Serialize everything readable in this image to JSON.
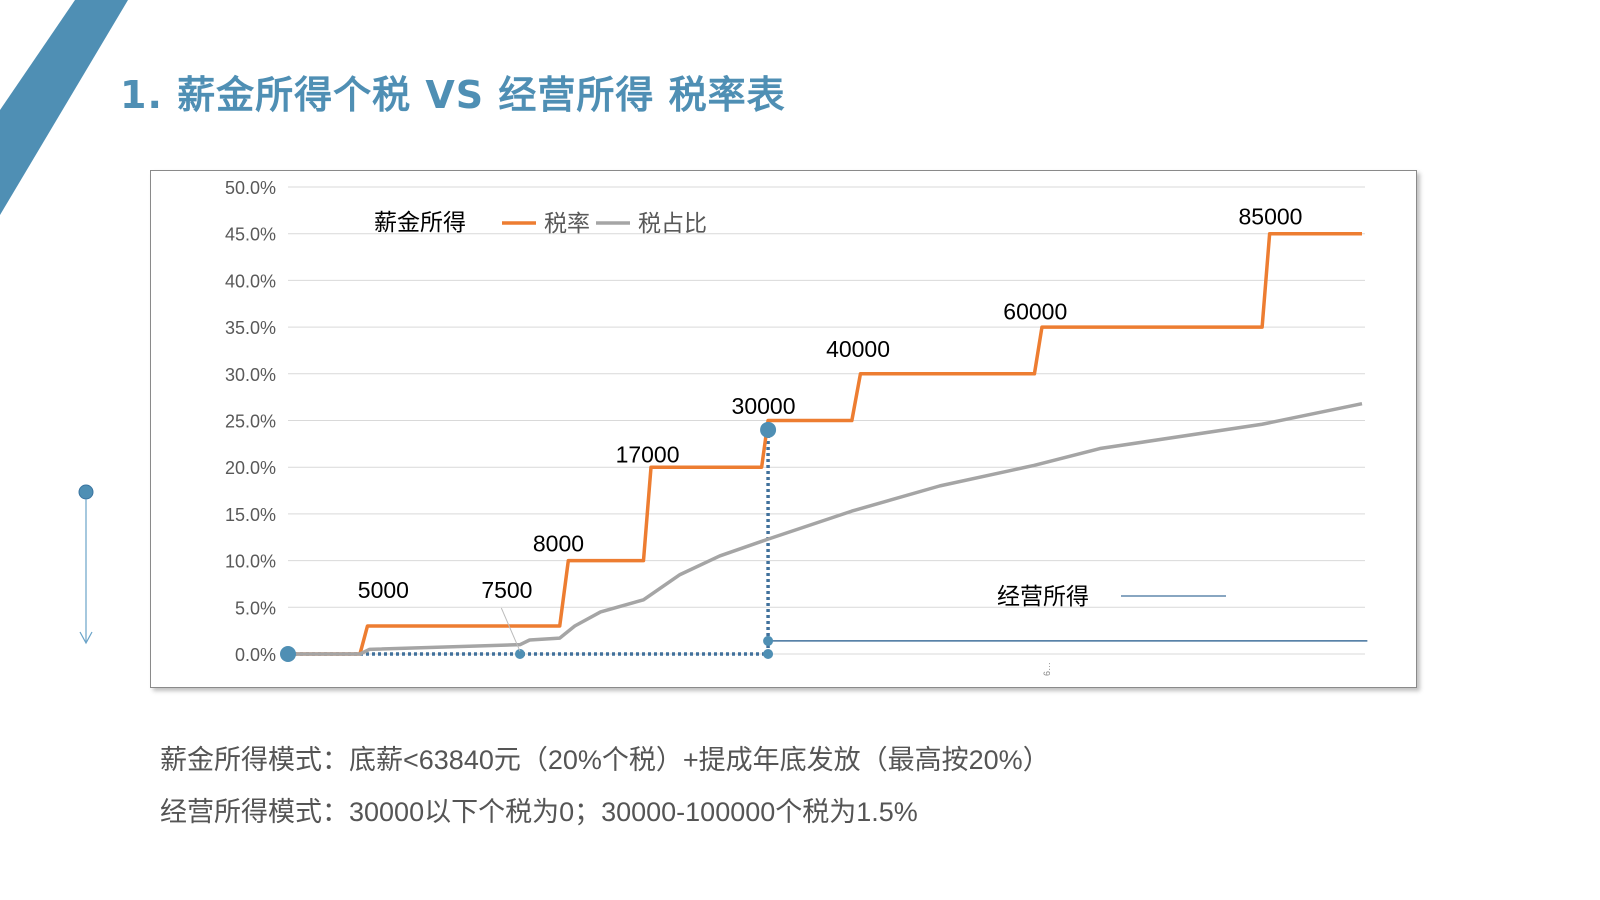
{
  "title": "1. 薪金所得个税 VS 经营所得 税率表",
  "notes": [
    "薪金所得模式：底薪<63840元（20%个税）+提成年底发放（最高按20%）",
    "经营所得模式：30000以下个税为0；30000-100000个税为1.5%"
  ],
  "colors": {
    "accent": "#4f8fb4",
    "tax_rate": "#ed7d31",
    "tax_ratio": "#a5a5a5",
    "business": "#41719c"
  },
  "chart_data": {
    "type": "line",
    "ylim": [
      0,
      50
    ],
    "xlim": [
      0,
      100
    ],
    "y_ticks": [
      "0.0%",
      "5.0%",
      "10.0%",
      "15.0%",
      "20.0%",
      "25.0%",
      "30.0%",
      "35.0%",
      "40.0%",
      "45.0%",
      "50.0%"
    ],
    "grid": true,
    "legend_title": "薪金所得",
    "legend_placement": "top-left",
    "x_tick_fragment": "6…",
    "series": [
      {
        "name": "税率",
        "color": "#ed7d31",
        "points": [
          [
            0,
            0
          ],
          [
            6.7,
            0
          ],
          [
            7.4,
            3
          ],
          [
            25.3,
            3
          ],
          [
            26.1,
            10
          ],
          [
            33.1,
            10
          ],
          [
            33.8,
            20
          ],
          [
            44.1,
            20
          ],
          [
            44.7,
            25
          ],
          [
            52.5,
            25
          ],
          [
            53.3,
            30
          ],
          [
            69.5,
            30
          ],
          [
            70.2,
            35
          ],
          [
            90.7,
            35
          ],
          [
            91.4,
            45
          ],
          [
            100,
            45
          ]
        ]
      },
      {
        "name": "税占比",
        "color": "#a5a5a5",
        "points": [
          [
            0,
            0
          ],
          [
            6.7,
            0
          ],
          [
            7.6,
            0.5
          ],
          [
            21.6,
            1
          ],
          [
            22.5,
            1.5
          ],
          [
            25.3,
            1.7
          ],
          [
            26.7,
            3
          ],
          [
            29.1,
            4.5
          ],
          [
            33.1,
            5.8
          ],
          [
            36.5,
            8.5
          ],
          [
            40.2,
            10.5
          ],
          [
            44.7,
            12.3
          ],
          [
            52.5,
            15.3
          ],
          [
            60.7,
            18
          ],
          [
            69.5,
            20.2
          ],
          [
            75.6,
            22
          ],
          [
            90.7,
            24.6
          ],
          [
            100,
            26.8
          ]
        ]
      },
      {
        "name": "经营所得",
        "color": "#41719c",
        "points": [
          [
            44.7,
            1.4
          ],
          [
            100.5,
            1.4
          ]
        ]
      }
    ],
    "guides": {
      "dotted": [
        [
          [
            0,
            0
          ],
          [
            44.7,
            0
          ]
        ],
        [
          [
            44.7,
            0
          ],
          [
            44.7,
            24
          ]
        ]
      ],
      "markers": [
        [
          0,
          0,
          "large"
        ],
        [
          21.6,
          0,
          "small"
        ],
        [
          44.7,
          0,
          "small"
        ],
        [
          44.7,
          1.4,
          "small"
        ],
        [
          44.7,
          24,
          "large"
        ]
      ]
    },
    "annotations": [
      {
        "text": "5000",
        "at": [
          6.5,
          6
        ]
      },
      {
        "text": "7500",
        "at": [
          18,
          6
        ],
        "leader_to": [
          21.6,
          0.3
        ]
      },
      {
        "text": "8000",
        "at": [
          22.8,
          11
        ]
      },
      {
        "text": "17000",
        "at": [
          30.5,
          20.5
        ]
      },
      {
        "text": "30000",
        "at": [
          41.3,
          25.7
        ]
      },
      {
        "text": "40000",
        "at": [
          50.1,
          31.8
        ]
      },
      {
        "text": "60000",
        "at": [
          66.6,
          35.8
        ]
      },
      {
        "text": "85000",
        "at": [
          88.5,
          46
        ]
      }
    ],
    "business_legend": "经营所得"
  }
}
